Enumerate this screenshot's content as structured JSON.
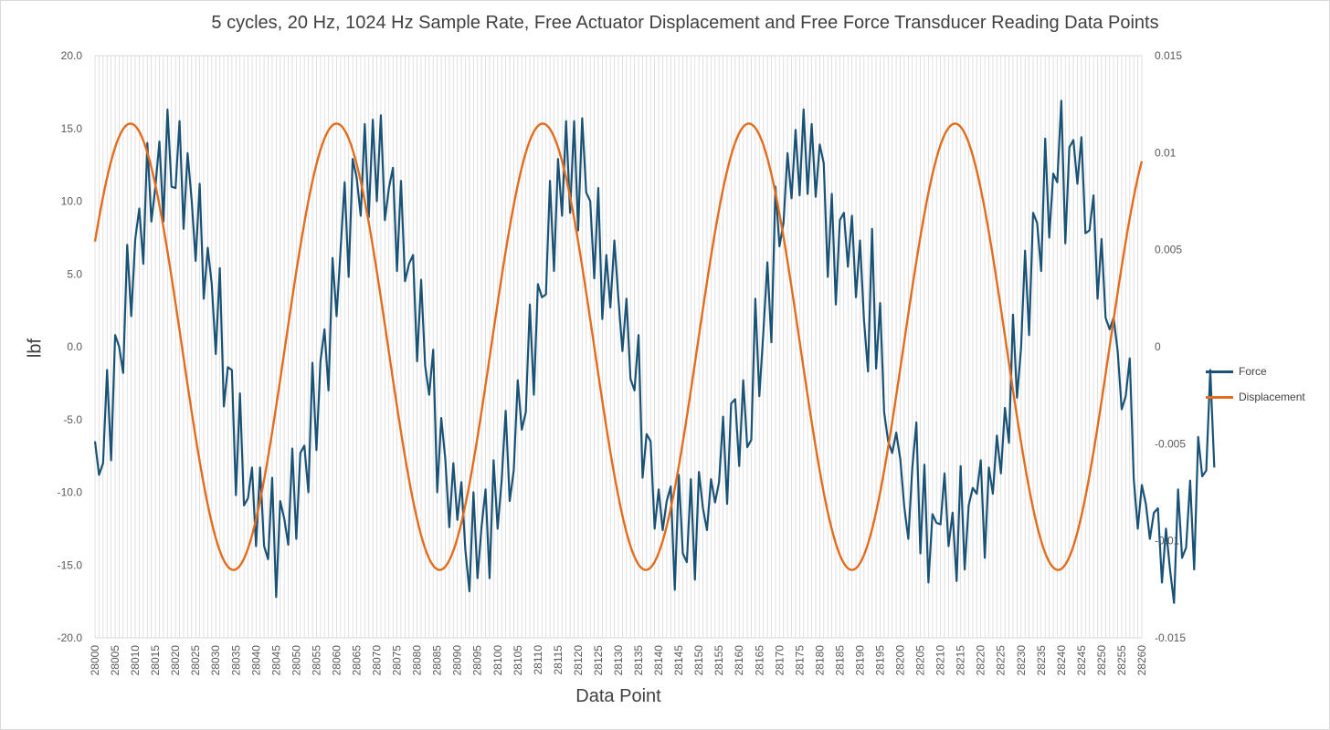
{
  "colors": {
    "force": "#1a5276",
    "displacement": "#e36c1d",
    "grid": "#d9d9d9",
    "text": "#595959"
  },
  "chart_data": {
    "type": "line",
    "title": "5 cycles, 20 Hz, 1024 Hz Sample Rate, Free Actuator Displacement and Free Force Transducer Reading Data Points",
    "xlabel": "Data Point",
    "ylabel": "lbf",
    "ylim": [
      -20,
      20
    ],
    "y2lim": [
      -0.015,
      0.015
    ],
    "grid": true,
    "legend_position": "right",
    "y_ticks": [
      "20.0",
      "15.0",
      "10.0",
      "5.0",
      "0.0",
      "-5.0",
      "-10.0",
      "-15.0",
      "-20.0"
    ],
    "y2_ticks": [
      "0.015",
      "0.01",
      "0.005",
      "0",
      "-0.005",
      "-0.01",
      "-0.015"
    ],
    "x_start": 28000,
    "x_end": 28260,
    "x_tick_step": 5,
    "x_ticks": [
      "28000",
      "28005",
      "28010",
      "28015",
      "28020",
      "28025",
      "28030",
      "28035",
      "28040",
      "28045",
      "28050",
      "28055",
      "28060",
      "28065",
      "28070",
      "28075",
      "28080",
      "28085",
      "28090",
      "28095",
      "28100",
      "28105",
      "28110",
      "28115",
      "28120",
      "28125",
      "28130",
      "28135",
      "28140",
      "28145",
      "28150",
      "28155",
      "28160",
      "28165",
      "28170",
      "28175",
      "28180",
      "28185",
      "28190",
      "28195",
      "28200",
      "28205",
      "28210",
      "28215",
      "28220",
      "28225",
      "28230",
      "28235",
      "28240",
      "28245",
      "28250",
      "28255",
      "28260"
    ],
    "series": [
      {
        "name": "Force",
        "axis": "left",
        "x_start": 28000,
        "values": [
          -6.5,
          -8.8,
          -8.0,
          -1.6,
          -7.8,
          0.8,
          0.0,
          -1.8,
          7.0,
          2.1,
          7.4,
          9.5,
          5.7,
          14.0,
          8.6,
          11.0,
          14.1,
          8.6,
          16.3,
          11.0,
          10.9,
          15.5,
          8.1,
          13.3,
          10.1,
          5.9,
          11.2,
          3.3,
          6.8,
          4.3,
          -0.5,
          5.4,
          -4.1,
          -1.4,
          -1.6,
          -10.2,
          -3.2,
          -10.9,
          -10.4,
          -8.3,
          -13.7,
          -8.3,
          -13.7,
          -14.6,
          -9.0,
          -17.2,
          -10.6,
          -11.8,
          -13.6,
          -7.0,
          -13.2,
          -7.3,
          -6.8,
          -10.0,
          -1.1,
          -7.1,
          -1.0,
          1.2,
          -3.0,
          6.1,
          2.1,
          6.7,
          11.3,
          4.8,
          12.9,
          11.6,
          9.0,
          15.3,
          8.9,
          15.6,
          10.0,
          15.9,
          8.7,
          10.9,
          12.3,
          5.2,
          11.4,
          4.5,
          5.7,
          6.3,
          -1.0,
          4.6,
          -1.3,
          -3.3,
          -0.2,
          -10.0,
          -4.9,
          -7.7,
          -12.4,
          -8.0,
          -11.9,
          -9.3,
          -14.0,
          -16.8,
          -10.0,
          -15.9,
          -12.4,
          -9.8,
          -15.9,
          -7.8,
          -12.5,
          -9.2,
          -4.4,
          -10.6,
          -8.5,
          -2.3,
          -5.7,
          -4.5,
          2.9,
          -3.3,
          4.3,
          3.4,
          3.6,
          11.4,
          5.2,
          12.9,
          9.0,
          15.5,
          9.2,
          15.5,
          8.0,
          15.7,
          10.6,
          10.0,
          4.7,
          10.9,
          1.9,
          6.3,
          2.7,
          7.3,
          3.3,
          -0.3,
          3.3,
          -2.2,
          -3.0,
          0.8,
          -9.0,
          -6.0,
          -6.5,
          -12.5,
          -9.8,
          -12.6,
          -10.6,
          -9.6,
          -16.7,
          -8.8,
          -14.2,
          -14.8,
          -9.1,
          -16.0,
          -8.6,
          -11.1,
          -12.6,
          -9.1,
          -10.7,
          -9.3,
          -4.8,
          -10.8,
          -3.9,
          -3.6,
          -8.2,
          -2.3,
          -6.9,
          -6.4,
          3.3,
          -3.4,
          1.0,
          5.8,
          0.3,
          11.0,
          6.9,
          8.5,
          13.3,
          10.2,
          14.9,
          10.4,
          16.3,
          10.5,
          15.3,
          10.3,
          13.9,
          12.6,
          4.8,
          10.5,
          2.9,
          8.7,
          9.2,
          5.5,
          9.0,
          3.4,
          7.3,
          1.8,
          -1.7,
          8.1,
          -1.5,
          3.0,
          -4.5,
          -6.5,
          -7.3,
          -5.9,
          -7.7,
          -11.0,
          -13.2,
          -8.3,
          -5.2,
          -14.2,
          -8.1,
          -16.2,
          -11.5,
          -12.1,
          -12.2,
          -8.7,
          -13.7,
          -11.4,
          -16.1,
          -8.2,
          -15.3,
          -10.9,
          -9.7,
          -10.1,
          -7.8,
          -14.5,
          -8.3,
          -10.1,
          -6.1,
          -8.7,
          -4.2,
          -6.6,
          2.2,
          -3.5,
          -0.1,
          6.6,
          0.8,
          9.2,
          8.5,
          5.2,
          14.3,
          7.5,
          11.9,
          11.3,
          16.9,
          7.1,
          13.7,
          14.2,
          11.2,
          14.4,
          7.8,
          8.0,
          10.4,
          3.3,
          7.4,
          2.0,
          1.2,
          2.0,
          -0.3,
          -4.3,
          -3.4,
          -0.8,
          -9.1,
          -12.5,
          -9.5,
          -10.8,
          -13.2,
          -11.4,
          -11.1,
          -16.2,
          -12.5,
          -15.3,
          -17.6,
          -9.8,
          -14.5,
          -13.8,
          -9.2,
          -15.3,
          -6.2,
          -8.9,
          -8.5,
          -1.6,
          -8.3
        ]
      },
      {
        "name": "Displacement",
        "axis": "right",
        "x_start": 28000,
        "amplitude": 0.0115,
        "period": 51.2,
        "phase_point": 27996.0
      }
    ]
  }
}
